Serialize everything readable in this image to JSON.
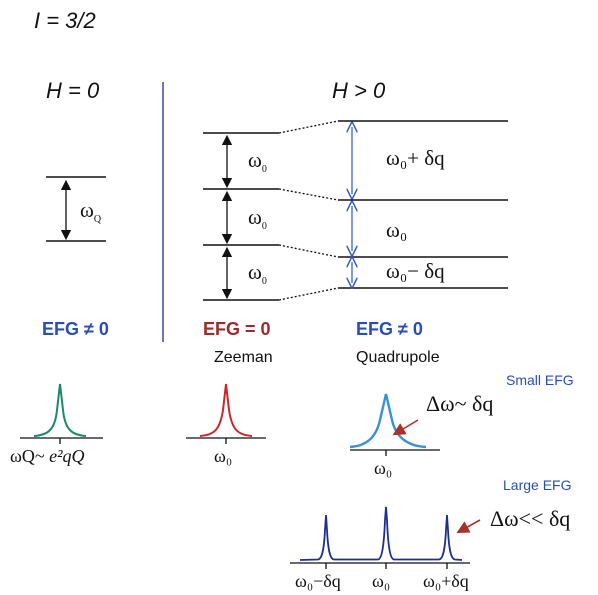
{
  "spin_label": "I = 3/2",
  "panel_zero": {
    "title": "H = 0",
    "omega_label": "ω",
    "omega_sub": "Q",
    "efg_label": "EFG ≠ 0",
    "efg_color": "#2a4db5"
  },
  "panel_field": {
    "title": "H > 0",
    "zeeman_gap_label": "ω",
    "zeeman_gap_sub": "0",
    "quad_top_label": "ω₀+ δq",
    "quad_mid_label": "ω₀",
    "quad_bot_label": "ω₀− δq"
  },
  "zeeman": {
    "efg_label": "EFG = 0",
    "efg_color": "#9c2a2a",
    "caption": "Zeeman",
    "axis_label": "ω₀"
  },
  "quadrupole": {
    "efg_label": "EFG ≠ 0",
    "efg_color": "#2a4db5",
    "caption": "Quadrupole"
  },
  "nqr_spectrum": {
    "axis_label_left": "ωQ~",
    "axis_label_right": "e²qQ",
    "peak_color": "#1a8a6a"
  },
  "small_efg": {
    "title": "Small EFG",
    "annotation": "Δω~ δq",
    "axis_label": "ω₀",
    "peak_color": "#3a8fd6"
  },
  "large_efg": {
    "title": "Large EFG",
    "annotation": "Δω<< δq",
    "axis_labels": [
      "ω₀−δq",
      "ω₀",
      "ω₀+δq"
    ],
    "peak_color": "#1e2f8f"
  },
  "colors": {
    "divider": "#3b4aa0",
    "arrow_blue": "#2a56c6",
    "arrow_red": "#a8322a",
    "zeeman_peak": "#c8282a"
  }
}
